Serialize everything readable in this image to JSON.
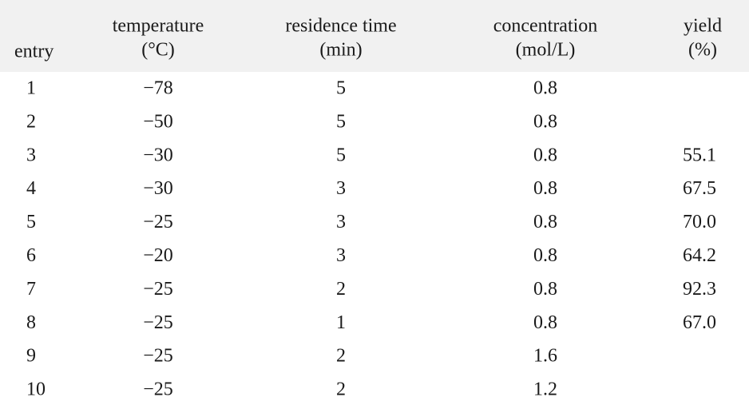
{
  "table": {
    "columns": [
      {
        "name": "entry"
      },
      {
        "name": "temperature",
        "unit": "(°C)"
      },
      {
        "name": "residence time",
        "unit": "(min)"
      },
      {
        "name": "concentration",
        "unit": "(mol/L)"
      },
      {
        "name": "yield",
        "unit": "(%)"
      }
    ],
    "rows": [
      [
        "1",
        "−78",
        "5",
        "0.8",
        null
      ],
      [
        "2",
        "−50",
        "5",
        "0.8",
        null
      ],
      [
        "3",
        "−30",
        "5",
        "0.8",
        "55.1"
      ],
      [
        "4",
        "−30",
        "3",
        "0.8",
        "67.5"
      ],
      [
        "5",
        "−25",
        "3",
        "0.8",
        "70.0"
      ],
      [
        "6",
        "−20",
        "3",
        "0.8",
        "64.2"
      ],
      [
        "7",
        "−25",
        "2",
        "0.8",
        "92.3"
      ],
      [
        "8",
        "−25",
        "1",
        "0.8",
        "67.0"
      ],
      [
        "9",
        "−25",
        "2",
        "1.6",
        null
      ],
      [
        "10",
        "−25",
        "2",
        "1.2",
        null
      ]
    ]
  }
}
